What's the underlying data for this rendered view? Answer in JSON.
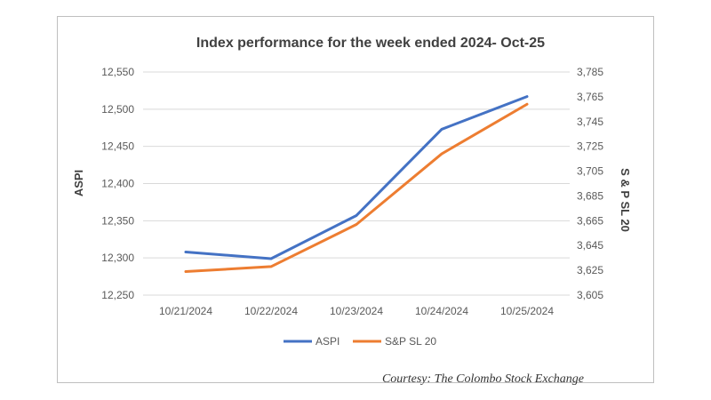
{
  "chart_data": {
    "type": "line",
    "title": "Index performance for the week ended 2024- Oct-25",
    "categories": [
      "10/21/2024",
      "10/22/2024",
      "10/23/2024",
      "10/24/2024",
      "10/25/2024"
    ],
    "y_left": {
      "label": "ASPI",
      "range": [
        12250,
        12550
      ],
      "ticks": [
        "12,250",
        "12,300",
        "12,350",
        "12,400",
        "12,450",
        "12,500",
        "12,550"
      ]
    },
    "y_right": {
      "label": "S & P SL 20",
      "range": [
        3605,
        3785
      ],
      "ticks": [
        "3,605",
        "3,625",
        "3,645",
        "3,665",
        "3,685",
        "3,705",
        "3,725",
        "3,745",
        "3,765",
        "3,785"
      ]
    },
    "series": [
      {
        "name": "ASPI",
        "axis": "left",
        "color": "#4472C4",
        "values": [
          12308,
          12299,
          12357,
          12473,
          12517
        ]
      },
      {
        "name": "S&P SL 20",
        "axis": "right",
        "color": "#ED7D31",
        "values": [
          3624,
          3628,
          3662,
          3719,
          3759
        ]
      }
    ],
    "grid": true,
    "legend": "bottom"
  },
  "source_note": "Courtesy: The Colombo Stock Exchange"
}
